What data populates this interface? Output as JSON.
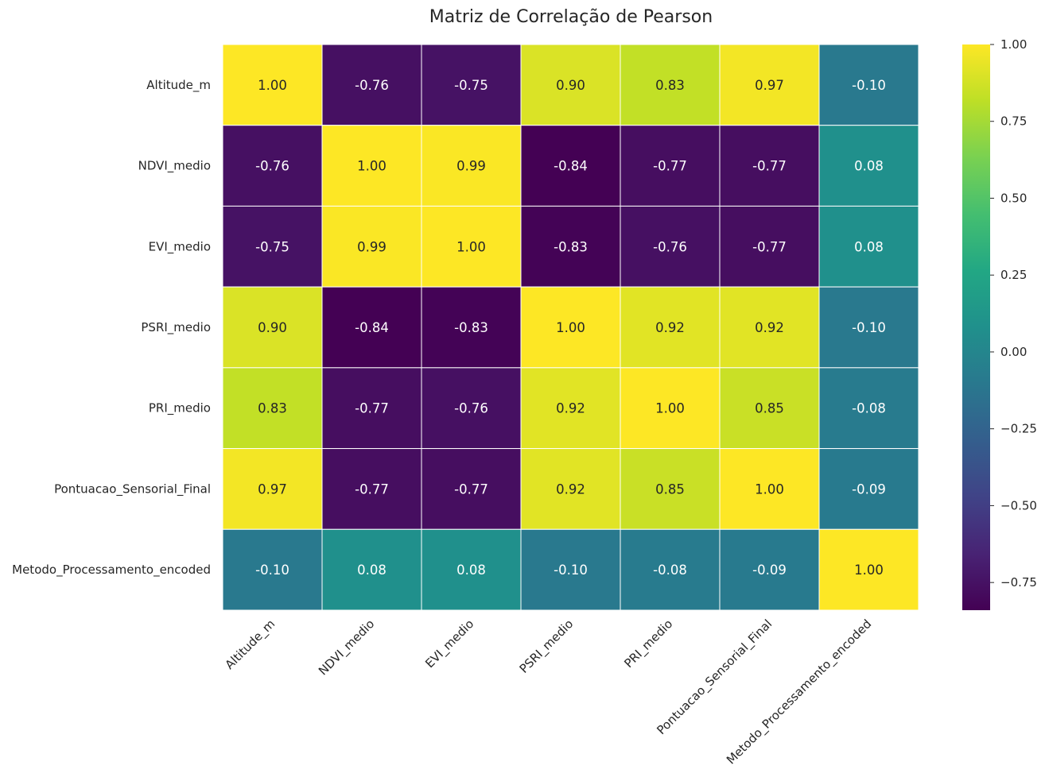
{
  "chart_data": {
    "type": "heatmap",
    "title": "Matriz de Correlação de Pearson",
    "x_labels": [
      "Altitude_m",
      "NDVI_medio",
      "EVI_medio",
      "PSRI_medio",
      "PRI_medio",
      "Pontuacao_Sensorial_Final",
      "Metodo_Processamento_encoded"
    ],
    "y_labels": [
      "Altitude_m",
      "NDVI_medio",
      "EVI_medio",
      "PSRI_medio",
      "PRI_medio",
      "Pontuacao_Sensorial_Final",
      "Metodo_Processamento_encoded"
    ],
    "values": [
      [
        1.0,
        -0.76,
        -0.75,
        0.9,
        0.83,
        0.97,
        -0.1
      ],
      [
        -0.76,
        1.0,
        0.99,
        -0.84,
        -0.77,
        -0.77,
        0.08
      ],
      [
        -0.75,
        0.99,
        1.0,
        -0.83,
        -0.76,
        -0.77,
        0.08
      ],
      [
        0.9,
        -0.84,
        -0.83,
        1.0,
        0.92,
        0.92,
        -0.1
      ],
      [
        0.83,
        -0.77,
        -0.76,
        0.92,
        1.0,
        0.85,
        -0.08
      ],
      [
        0.97,
        -0.77,
        -0.77,
        0.92,
        0.85,
        1.0,
        -0.09
      ],
      [
        -0.1,
        0.08,
        0.08,
        -0.1,
        -0.08,
        -0.09,
        1.0
      ]
    ],
    "cell_labels": [
      [
        "1.00",
        "-0.76",
        "-0.75",
        "0.90",
        "0.83",
        "0.97",
        "-0.10"
      ],
      [
        "-0.76",
        "1.00",
        "0.99",
        "-0.84",
        "-0.77",
        "-0.77",
        "0.08"
      ],
      [
        "-0.75",
        "0.99",
        "1.00",
        "-0.83",
        "-0.76",
        "-0.77",
        "0.08"
      ],
      [
        "0.90",
        "-0.84",
        "-0.83",
        "1.00",
        "0.92",
        "0.92",
        "-0.10"
      ],
      [
        "0.83",
        "-0.77",
        "-0.76",
        "0.92",
        "1.00",
        "0.85",
        "-0.08"
      ],
      [
        "0.97",
        "-0.77",
        "-0.77",
        "0.92",
        "0.85",
        "1.00",
        "-0.09"
      ],
      [
        "-0.10",
        "0.08",
        "0.08",
        "-0.10",
        "-0.08",
        "-0.09",
        "1.00"
      ]
    ],
    "colormap": "viridis",
    "color_range": [
      -0.84,
      1.0
    ],
    "colorbar_ticks": [
      1.0,
      0.75,
      0.5,
      0.25,
      0.0,
      -0.25,
      -0.5,
      -0.75
    ],
    "colorbar_tick_labels": [
      "1.00",
      "0.75",
      "0.50",
      "0.25",
      "0.00",
      "−0.25",
      "−0.50",
      "−0.75"
    ],
    "x_tick_rotation_deg": 45,
    "cell_border_color": "#ffffff"
  }
}
